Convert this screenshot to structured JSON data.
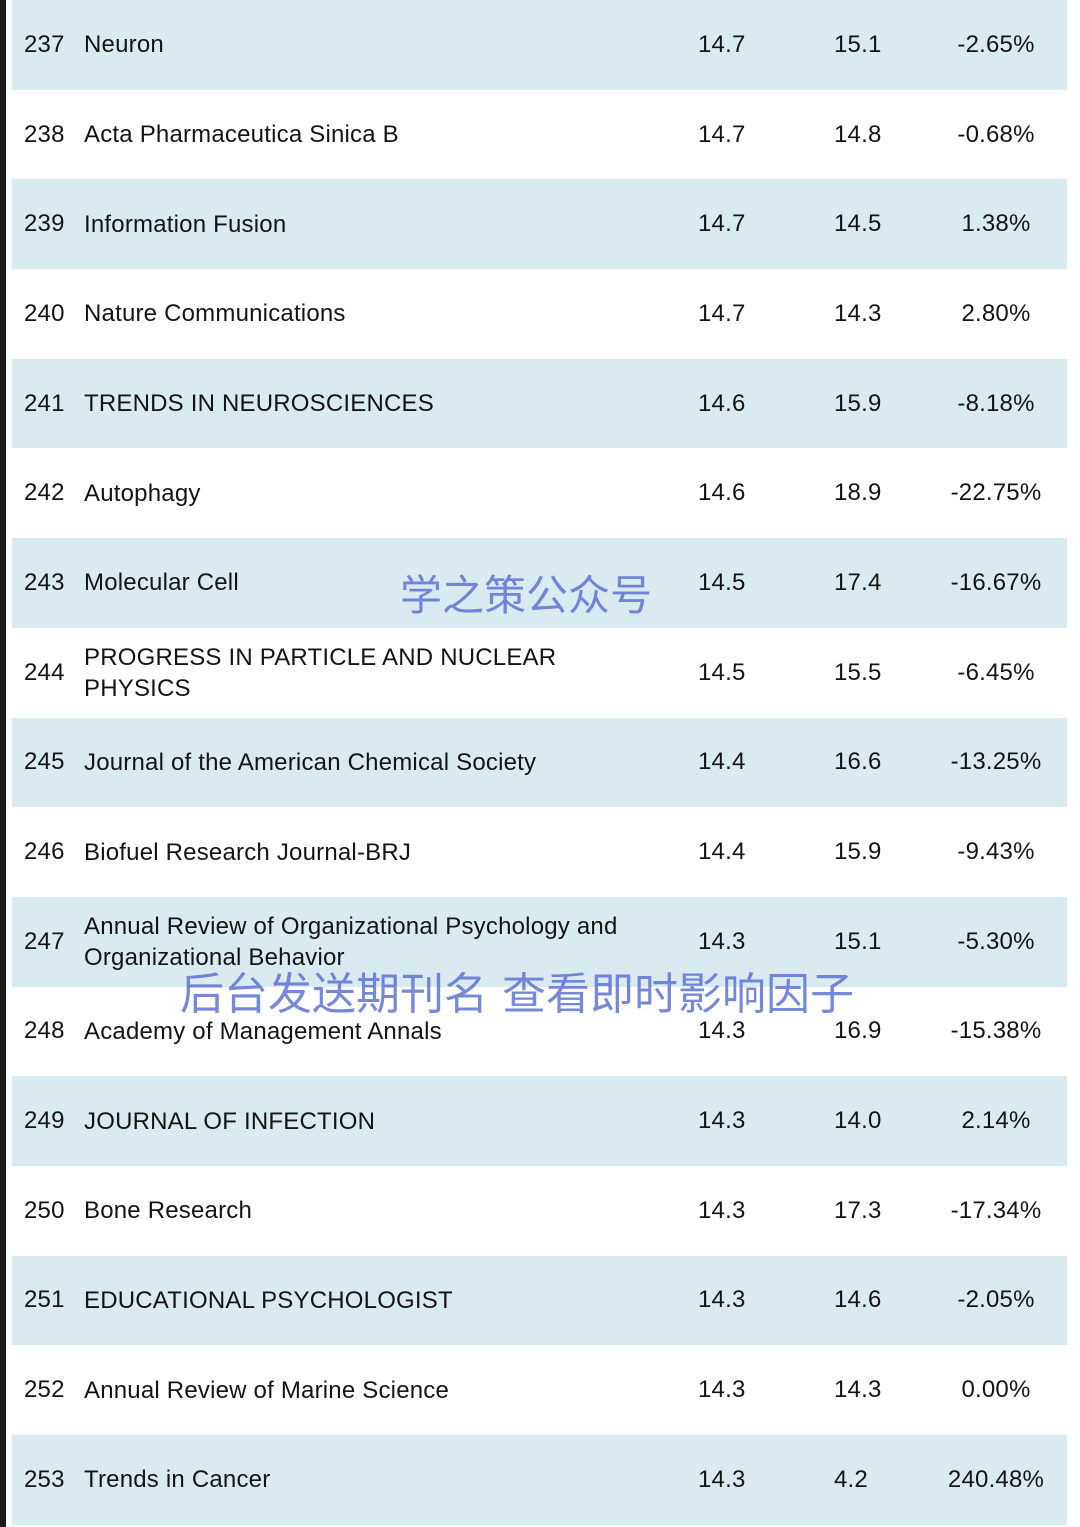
{
  "rows": [
    {
      "rank": "237",
      "journal": "Neuron",
      "if_a": "14.7",
      "if_b": "15.1",
      "change": "-2.65%"
    },
    {
      "rank": "238",
      "journal": "Acta Pharmaceutica Sinica B",
      "if_a": "14.7",
      "if_b": "14.8",
      "change": "-0.68%"
    },
    {
      "rank": "239",
      "journal": "Information Fusion",
      "if_a": "14.7",
      "if_b": "14.5",
      "change": "1.38%"
    },
    {
      "rank": "240",
      "journal": "Nature Communications",
      "if_a": "14.7",
      "if_b": "14.3",
      "change": "2.80%"
    },
    {
      "rank": "241",
      "journal": "TRENDS IN NEUROSCIENCES",
      "if_a": "14.6",
      "if_b": "15.9",
      "change": "-8.18%"
    },
    {
      "rank": "242",
      "journal": "Autophagy",
      "if_a": "14.6",
      "if_b": "18.9",
      "change": "-22.75%"
    },
    {
      "rank": "243",
      "journal": "Molecular Cell",
      "if_a": "14.5",
      "if_b": "17.4",
      "change": "-16.67%"
    },
    {
      "rank": "244",
      "journal": "PROGRESS IN PARTICLE AND NUCLEAR PHYSICS",
      "if_a": "14.5",
      "if_b": "15.5",
      "change": "-6.45%"
    },
    {
      "rank": "245",
      "journal": "Journal of the American Chemical Society",
      "if_a": "14.4",
      "if_b": "16.6",
      "change": "-13.25%"
    },
    {
      "rank": "246",
      "journal": "Biofuel Research Journal-BRJ",
      "if_a": "14.4",
      "if_b": "15.9",
      "change": "-9.43%"
    },
    {
      "rank": "247",
      "journal": "Annual Review of Organizational Psychology and Organizational Behavior",
      "if_a": "14.3",
      "if_b": "15.1",
      "change": "-5.30%"
    },
    {
      "rank": "248",
      "journal": "Academy of Management Annals",
      "if_a": "14.3",
      "if_b": "16.9",
      "change": "-15.38%"
    },
    {
      "rank": "249",
      "journal": "JOURNAL OF INFECTION",
      "if_a": "14.3",
      "if_b": "14.0",
      "change": "2.14%"
    },
    {
      "rank": "250",
      "journal": "Bone Research",
      "if_a": "14.3",
      "if_b": "17.3",
      "change": "-17.34%"
    },
    {
      "rank": "251",
      "journal": "EDUCATIONAL PSYCHOLOGIST",
      "if_a": "14.3",
      "if_b": "14.6",
      "change": "-2.05%"
    },
    {
      "rank": "252",
      "journal": "Annual Review of Marine Science",
      "if_a": "14.3",
      "if_b": "14.3",
      "change": "0.00%"
    },
    {
      "rank": "253",
      "journal": "Trends in Cancer",
      "if_a": "14.3",
      "if_b": "4.2",
      "change": "240.48%"
    }
  ],
  "watermarks": {
    "account": "学之策公众号",
    "instruction": "后台发送期刊名 查看即时影响因子"
  },
  "colors": {
    "row_shaded": "#daeaf1",
    "row_plain": "#ffffff",
    "text": "#141414",
    "watermark": "#586ed2"
  }
}
